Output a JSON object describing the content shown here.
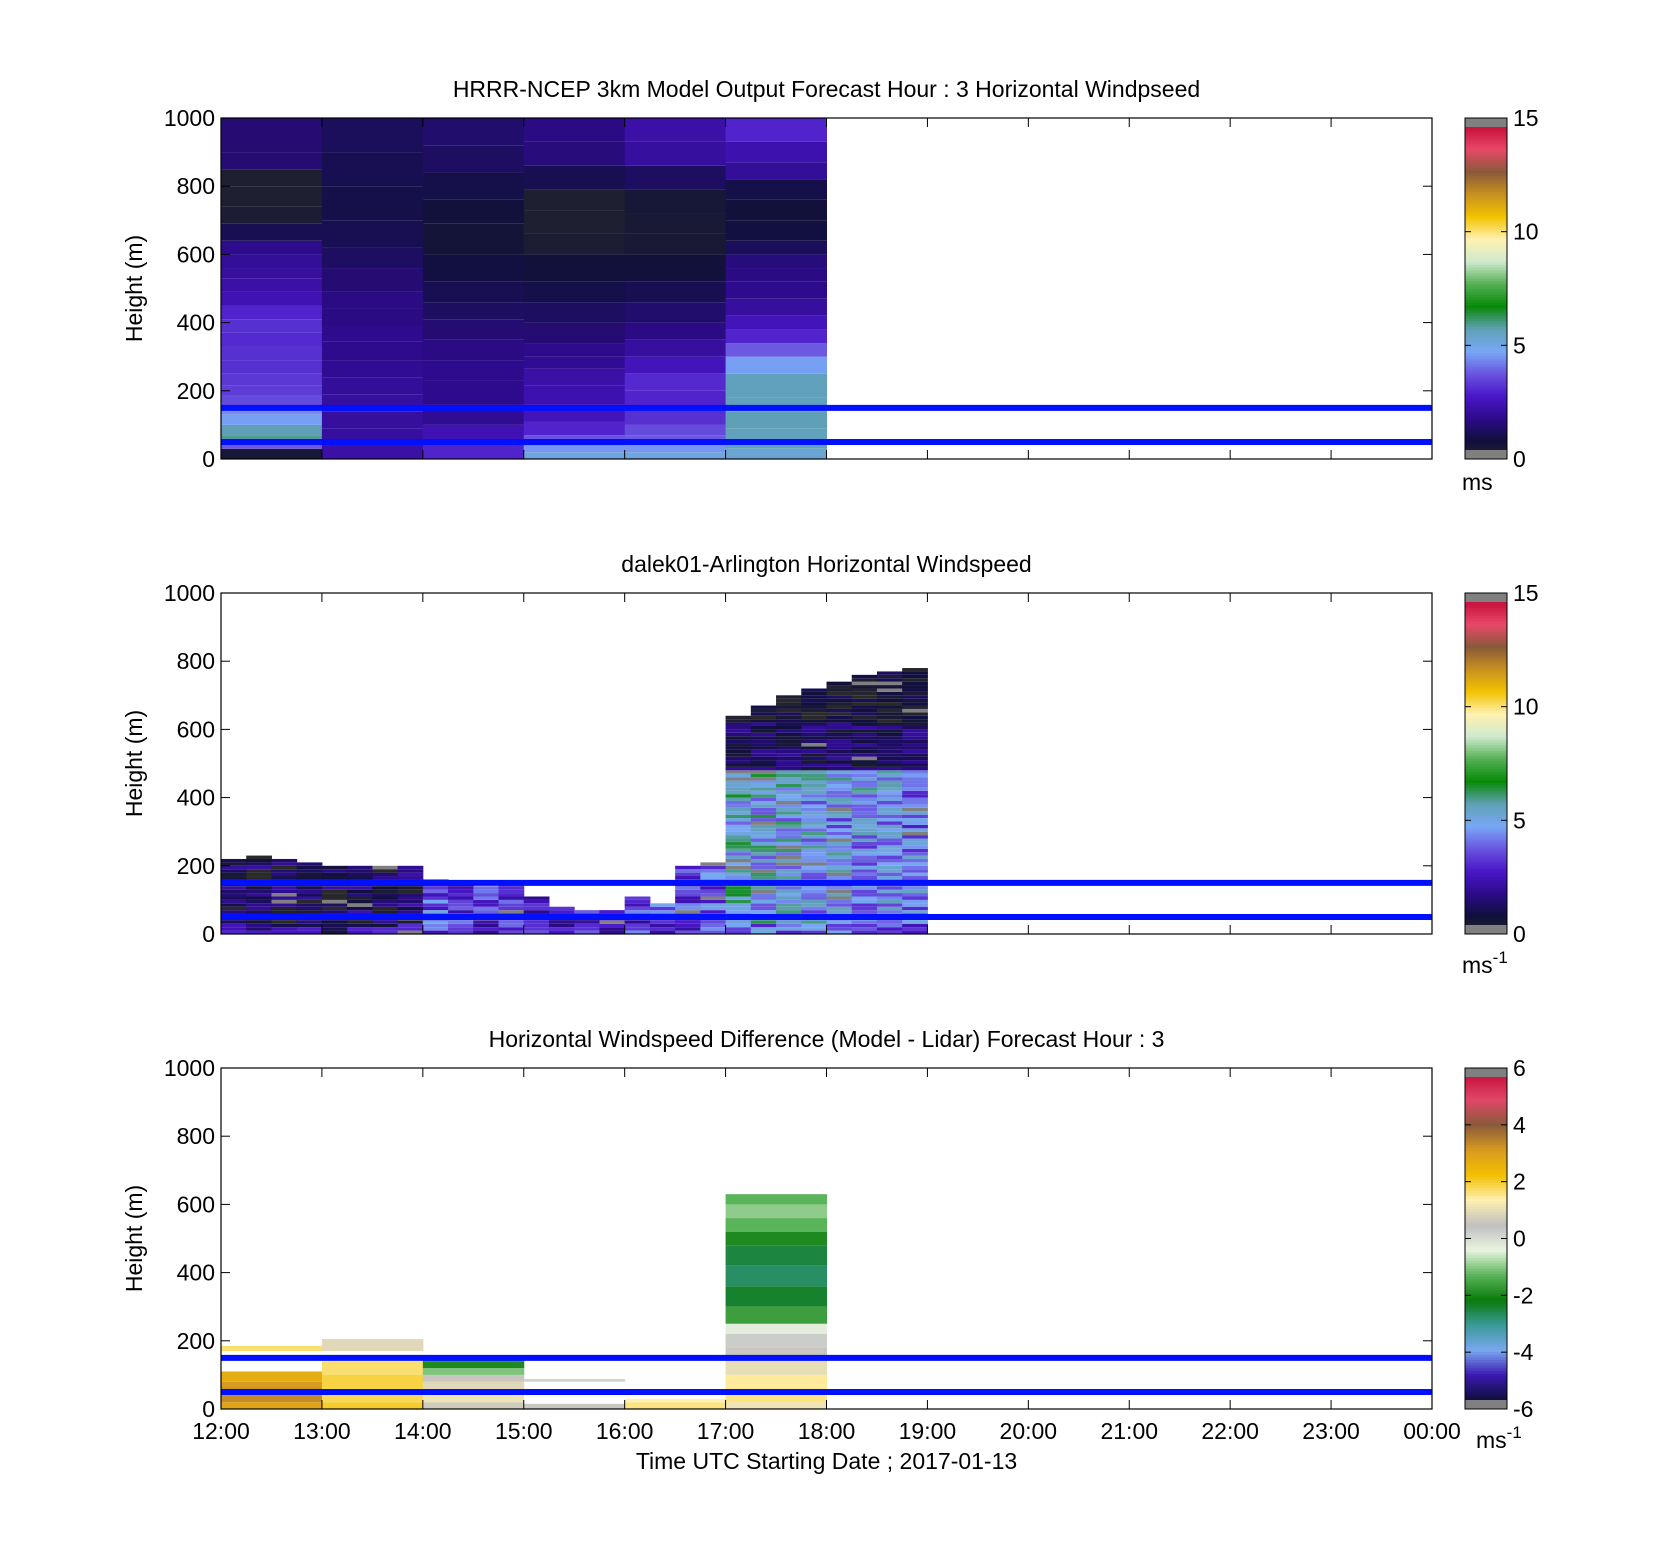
{
  "figure_title": "",
  "colors": {
    "ref_line": "#0010ff",
    "speed_scale": [
      "#2a2a2a",
      "#10103c",
      "#2c0b8a",
      "#4a16c8",
      "#6a55e0",
      "#78a8f6",
      "#5fa0b4",
      "#088a08",
      "#54b054",
      "#cfeacf",
      "#fff2b0",
      "#f2c200",
      "#c89020",
      "#8a5a3a",
      "#e84868",
      "#c8103c",
      "#808080"
    ],
    "diff_scale": [
      "#808080",
      "#0e0e3a",
      "#3a18b0",
      "#7aa8f0",
      "#3a9a9a",
      "#0a7a0a",
      "#5ab45a",
      "#e8f4e0",
      "#c0c0c0",
      "#fff0b0",
      "#f2c000",
      "#d89a20",
      "#8a5a3a",
      "#e04868",
      "#c8103c",
      "#808080"
    ]
  },
  "chart_data": [
    {
      "type": "heatmap",
      "title": "HRRR-NCEP 3km Model Output   Forecast Hour : 3 Horizontal Windpseed",
      "ylabel": "Height (m)",
      "xlabel": "",
      "ylim": [
        0,
        1000
      ],
      "yticks": [
        "0",
        "200",
        "400",
        "600",
        "800",
        "1000"
      ],
      "xlim": [
        12,
        24
      ],
      "xticks": [
        "12:00",
        "13:00",
        "14:00",
        "15:00",
        "16:00",
        "17:00",
        "18:00",
        "19:00",
        "20:00",
        "21:00",
        "22:00",
        "23:00",
        "00:00"
      ],
      "x_tick_labels_shown": false,
      "ref_lines_m": [
        150,
        50
      ],
      "colorbar": {
        "min": 0,
        "max": 15,
        "ticks": [
          "0",
          "5",
          "10",
          "15"
        ],
        "unit": "ms",
        "unit_sup": ""
      },
      "columns": [
        {
          "x0": 12,
          "x1": 13,
          "cells": [
            [
              30,
              0.7
            ],
            [
              50,
              3.8
            ],
            [
              70,
              5.8
            ],
            [
              100,
              5.6
            ],
            [
              130,
              4.6
            ],
            [
              155,
              4.4
            ],
            [
              185,
              3.6
            ],
            [
              215,
              3.4
            ],
            [
              250,
              3.3
            ],
            [
              290,
              3.2
            ],
            [
              330,
              3.2
            ],
            [
              370,
              3.1
            ],
            [
              410,
              3.2
            ],
            [
              450,
              3.0
            ],
            [
              490,
              2.5
            ],
            [
              530,
              2.3
            ],
            [
              560,
              2.2
            ],
            [
              600,
              2.1
            ],
            [
              640,
              1.9
            ],
            [
              690,
              1.2
            ],
            [
              740,
              0.5
            ],
            [
              800,
              0.4
            ],
            [
              850,
              0.4
            ],
            [
              900,
              1.6
            ],
            [
              1000,
              1.6
            ]
          ]
        },
        {
          "x0": 13,
          "x1": 14,
          "cells": [
            [
              45,
              2.3
            ],
            [
              90,
              2.2
            ],
            [
              140,
              2.2
            ],
            [
              190,
              2.2
            ],
            [
              240,
              2.1
            ],
            [
              290,
              2.0
            ],
            [
              345,
              1.9
            ],
            [
              390,
              1.9
            ],
            [
              440,
              1.8
            ],
            [
              490,
              1.8
            ],
            [
              560,
              1.6
            ],
            [
              620,
              1.4
            ],
            [
              700,
              1.2
            ],
            [
              800,
              1.1
            ],
            [
              900,
              1.2
            ],
            [
              1000,
              1.3
            ]
          ]
        },
        {
          "x0": 14,
          "x1": 15,
          "cells": [
            [
              45,
              3.0
            ],
            [
              100,
              2.5
            ],
            [
              160,
              2.0
            ],
            [
              230,
              1.9
            ],
            [
              290,
              1.9
            ],
            [
              350,
              1.8
            ],
            [
              410,
              1.6
            ],
            [
              460,
              1.4
            ],
            [
              520,
              1.2
            ],
            [
              600,
              1.0
            ],
            [
              690,
              0.8
            ],
            [
              760,
              0.9
            ],
            [
              840,
              1.1
            ],
            [
              920,
              1.4
            ],
            [
              1000,
              1.5
            ]
          ]
        },
        {
          "x0": 15,
          "x1": 16,
          "cells": [
            [
              20,
              5.0
            ],
            [
              40,
              4.5
            ],
            [
              70,
              3.7
            ],
            [
              110,
              3.0
            ],
            [
              160,
              2.6
            ],
            [
              215,
              2.4
            ],
            [
              265,
              2.3
            ],
            [
              300,
              2.0
            ],
            [
              340,
              1.9
            ],
            [
              400,
              1.6
            ],
            [
              460,
              1.4
            ],
            [
              520,
              1.1
            ],
            [
              600,
              0.9
            ],
            [
              660,
              0.5
            ],
            [
              730,
              0.4
            ],
            [
              790,
              0.4
            ],
            [
              860,
              1.2
            ],
            [
              930,
              1.7
            ],
            [
              1000,
              1.8
            ]
          ]
        },
        {
          "x0": 16,
          "x1": 17,
          "cells": [
            [
              20,
              5.0
            ],
            [
              40,
              4.5
            ],
            [
              70,
              3.8
            ],
            [
              100,
              3.6
            ],
            [
              145,
              3.2
            ],
            [
              200,
              3.0
            ],
            [
              250,
              3.1
            ],
            [
              300,
              2.6
            ],
            [
              350,
              2.2
            ],
            [
              400,
              1.8
            ],
            [
              460,
              1.5
            ],
            [
              520,
              1.2
            ],
            [
              600,
              0.9
            ],
            [
              660,
              0.6
            ],
            [
              720,
              0.6
            ],
            [
              790,
              0.7
            ],
            [
              860,
              1.4
            ],
            [
              930,
              2.2
            ],
            [
              1000,
              2.3
            ]
          ]
        },
        {
          "x0": 17,
          "x1": 18,
          "cells": [
            [
              30,
              5.2
            ],
            [
              90,
              5.5
            ],
            [
              140,
              5.6
            ],
            [
              180,
              5.5
            ],
            [
              250,
              5.5
            ],
            [
              300,
              4.6
            ],
            [
              340,
              3.8
            ],
            [
              380,
              3.0
            ],
            [
              420,
              2.6
            ],
            [
              470,
              2.2
            ],
            [
              520,
              1.9
            ],
            [
              560,
              1.8
            ],
            [
              600,
              1.7
            ],
            [
              640,
              1.3
            ],
            [
              700,
              1.0
            ],
            [
              760,
              0.9
            ],
            [
              820,
              1.1
            ],
            [
              870,
              2.1
            ],
            [
              930,
              2.4
            ],
            [
              1000,
              3.0
            ]
          ]
        }
      ]
    },
    {
      "type": "heatmap",
      "title": "dalek01-Arlington  Horizontal Windspeed",
      "ylabel": "Height (m)",
      "xlabel": "",
      "ylim": [
        0,
        1000
      ],
      "yticks": [
        "0",
        "200",
        "400",
        "600",
        "800",
        "1000"
      ],
      "xlim": [
        12,
        24
      ],
      "xticks": [
        "12:00",
        "13:00",
        "14:00",
        "15:00",
        "16:00",
        "17:00",
        "18:00",
        "19:00",
        "20:00",
        "21:00",
        "22:00",
        "23:00",
        "00:00"
      ],
      "x_tick_labels_shown": false,
      "ref_lines_m": [
        150,
        50
      ],
      "colorbar": {
        "min": 0,
        "max": 15,
        "ticks": [
          "0",
          "5",
          "10",
          "15"
        ],
        "unit": "ms",
        "unit_sup": "-1"
      },
      "columns": [
        {
          "x0": 12.0,
          "x1": 12.25,
          "top": 220,
          "avg": 1.2
        },
        {
          "x0": 12.25,
          "x1": 12.5,
          "top": 230,
          "avg": 1.0
        },
        {
          "x0": 12.5,
          "x1": 12.75,
          "top": 220,
          "avg": 1.0
        },
        {
          "x0": 12.75,
          "x1": 13.0,
          "top": 210,
          "avg": 0.9
        },
        {
          "x0": 13.0,
          "x1": 13.25,
          "top": 205,
          "avg": 1.1
        },
        {
          "x0": 13.25,
          "x1": 13.5,
          "top": 205,
          "avg": 1.1
        },
        {
          "x0": 13.5,
          "x1": 13.75,
          "top": 200,
          "avg": 1.1
        },
        {
          "x0": 13.75,
          "x1": 14.0,
          "top": 200,
          "avg": 1.3
        },
        {
          "x0": 14.0,
          "x1": 14.25,
          "top": 165,
          "avg": 3.8
        },
        {
          "x0": 14.25,
          "x1": 14.5,
          "top": 150,
          "avg": 3.5
        },
        {
          "x0": 14.5,
          "x1": 14.75,
          "top": 145,
          "avg": 3.2
        },
        {
          "x0": 14.75,
          "x1": 15.0,
          "top": 150,
          "avg": 3.1
        },
        {
          "x0": 15.0,
          "x1": 15.25,
          "top": 110,
          "avg": 2.9
        },
        {
          "x0": 15.25,
          "x1": 15.5,
          "top": 80,
          "avg": 2.6
        },
        {
          "x0": 15.5,
          "x1": 15.75,
          "top": 70,
          "avg": 2.8
        },
        {
          "x0": 15.75,
          "x1": 16.0,
          "top": 75,
          "avg": 2.4
        },
        {
          "x0": 16.0,
          "x1": 16.25,
          "top": 110,
          "avg": 3.2
        },
        {
          "x0": 16.25,
          "x1": 16.5,
          "top": 95,
          "avg": 3.4
        },
        {
          "x0": 16.5,
          "x1": 16.75,
          "top": 200,
          "avg": 3.6
        },
        {
          "x0": 16.75,
          "x1": 17.0,
          "top": 210,
          "avg": 3.7
        },
        {
          "x0": 17.0,
          "x1": 17.25,
          "top": 645,
          "avg": 5.2
        },
        {
          "x0": 17.25,
          "x1": 17.5,
          "top": 670,
          "avg": 5.0
        },
        {
          "x0": 17.5,
          "x1": 17.75,
          "top": 700,
          "avg": 4.8
        },
        {
          "x0": 17.75,
          "x1": 18.0,
          "top": 720,
          "avg": 4.6
        },
        {
          "x0": 18.0,
          "x1": 18.25,
          "top": 740,
          "avg": 4.5
        },
        {
          "x0": 18.25,
          "x1": 18.5,
          "top": 760,
          "avg": 4.4
        },
        {
          "x0": 18.5,
          "x1": 18.75,
          "top": 770,
          "avg": 4.3
        },
        {
          "x0": 18.75,
          "x1": 19.0,
          "top": 785,
          "avg": 4.2
        }
      ],
      "upper_layer_from_17": {
        "start_height": 480,
        "speed": 0.8
      }
    },
    {
      "type": "heatmap",
      "title": "Horizontal Windspeed Difference (Model - Lidar) Forecast Hour : 3",
      "ylabel": "Height (m)",
      "xlabel": "Time UTC  Starting Date ; 2017-01-13",
      "ylim": [
        0,
        1000
      ],
      "yticks": [
        "0",
        "200",
        "400",
        "600",
        "800",
        "1000"
      ],
      "xlim": [
        12,
        24
      ],
      "xticks": [
        "12:00",
        "13:00",
        "14:00",
        "15:00",
        "16:00",
        "17:00",
        "18:00",
        "19:00",
        "20:00",
        "21:00",
        "22:00",
        "23:00",
        "00:00"
      ],
      "x_tick_labels_shown": true,
      "ref_lines_m": [
        150,
        50
      ],
      "colorbar": {
        "min": -6,
        "max": 6,
        "ticks": [
          "-6",
          "-4",
          "-2",
          "0",
          "2",
          "4",
          "6"
        ],
        "unit": "ms",
        "unit_sup": "-1"
      },
      "columns": [
        {
          "x0": 12,
          "x1": 13,
          "cells": [
            [
              20,
              2.6
            ],
            [
              40,
              3.0
            ],
            [
              60,
              3.2
            ],
            [
              80,
              2.8
            ],
            [
              110,
              2.4
            ],
            [
              170,
              null
            ],
            [
              185,
              1.5
            ]
          ]
        },
        {
          "x0": 13,
          "x1": 14,
          "cells": [
            [
              20,
              1.8
            ],
            [
              60,
              1.6
            ],
            [
              100,
              1.7
            ],
            [
              140,
              1.5
            ],
            [
              170,
              null
            ],
            [
              205,
              0.8
            ]
          ]
        },
        {
          "x0": 14,
          "x1": 15,
          "cells": [
            [
              20,
              0.6
            ],
            [
              50,
              1.0
            ],
            [
              80,
              0.8
            ],
            [
              100,
              0.5
            ],
            [
              120,
              -1.0
            ],
            [
              140,
              -1.8
            ],
            [
              145,
              -2.2
            ]
          ]
        },
        {
          "x0": 15,
          "x1": 16,
          "cells": [
            [
              15,
              0.5
            ],
            [
              80,
              null
            ],
            [
              88,
              0.1
            ]
          ]
        },
        {
          "x0": 16,
          "x1": 17,
          "cells": [
            [
              20,
              1.4
            ],
            [
              30,
              1.2
            ]
          ]
        },
        {
          "x0": 17,
          "x1": 18,
          "cells": [
            [
              20,
              1.0
            ],
            [
              60,
              1.4
            ],
            [
              100,
              1.3
            ],
            [
              140,
              0.9
            ],
            [
              180,
              0.5
            ],
            [
              220,
              0.2
            ],
            [
              250,
              -0.3
            ],
            [
              300,
              -1.5
            ],
            [
              360,
              -2.2
            ],
            [
              420,
              -2.5
            ],
            [
              480,
              -2.3
            ],
            [
              520,
              -1.8
            ],
            [
              560,
              -1.2
            ],
            [
              600,
              -0.9
            ],
            [
              630,
              -1.2
            ]
          ]
        }
      ]
    }
  ]
}
